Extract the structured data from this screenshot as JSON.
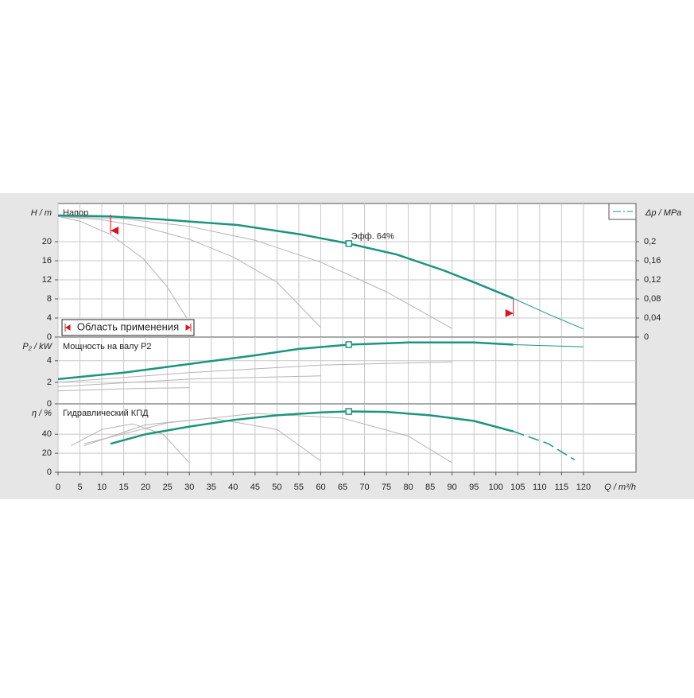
{
  "chart_data": [
    {
      "type": "line",
      "title": "Напор",
      "ylabel": "H / m",
      "y2label": "Δp / MPa",
      "xlim": [
        0,
        132
      ],
      "ylim": [
        0,
        28
      ],
      "yticks": [
        0,
        4,
        8,
        12,
        16,
        20
      ],
      "y2lim": [
        0,
        0.28
      ],
      "y2ticks": [
        0,
        {
          "value": 0.04,
          "label": "0,04"
        },
        {
          "value": 0.08,
          "label": "0,08"
        },
        {
          "value": 0.12,
          "label": "0,12"
        },
        {
          "value": 0.16,
          "label": "0,16"
        },
        {
          "value": 0.2,
          "label": "0,2"
        }
      ],
      "grid": true,
      "series": [
        {
          "color": "#b4b4b4",
          "style": "thin",
          "x": [
            0,
            5,
            12,
            19.4,
            24.8,
            29.4
          ],
          "values": [
            25.3,
            24.3,
            21.5,
            16.5,
            10.7,
            4
          ]
        },
        {
          "color": "#b4b4b4",
          "style": "thin",
          "x": [
            0,
            10,
            20,
            30,
            40,
            50,
            60
          ],
          "values": [
            25.3,
            24.6,
            23,
            20.5,
            16.8,
            11.5,
            2
          ]
        },
        {
          "color": "#b4b4b4",
          "style": "thin",
          "x": [
            0,
            15,
            30,
            45,
            60,
            75,
            90
          ],
          "values": [
            25.3,
            24.8,
            23.2,
            20.3,
            15.7,
            9.5,
            1.8
          ]
        },
        {
          "color": "#1a9580",
          "style": "thick",
          "x": [
            0,
            12,
            23,
            41,
            55.6,
            66.4,
            77.4,
            88,
            95.5,
            104
          ],
          "values": [
            25.5,
            25.3,
            24.7,
            23.5,
            21.5,
            19.6,
            17.3,
            14,
            11.3,
            8.1
          ]
        },
        {
          "color": "#1a9580",
          "style": "thin",
          "x": [
            104,
            112,
            120
          ],
          "values": [
            8.1,
            4.8,
            1.7
          ]
        }
      ],
      "points": [
        {
          "x": 66.4,
          "y": 19.6
        }
      ],
      "annotation": "Эфф.  64%",
      "range": [
        12,
        104
      ],
      "range_label": "Область применения",
      "range_color": "#e0121b"
    },
    {
      "type": "line",
      "title": "Мощность на валу P2",
      "ylabel": "P₂ / kW",
      "xlim": [
        0,
        132
      ],
      "ylim": [
        0,
        6.2
      ],
      "yticks": [
        0,
        2,
        4
      ],
      "grid": true,
      "series": [
        {
          "color": "#b4b4b4",
          "style": "thin",
          "x": [
            0,
            15,
            30
          ],
          "values": [
            1.2,
            1.4,
            1.5
          ]
        },
        {
          "color": "#b4b4b4",
          "style": "thin",
          "x": [
            0,
            30,
            60
          ],
          "values": [
            1.6,
            2.3,
            2.6
          ]
        },
        {
          "color": "#b4b4b4",
          "style": "thin",
          "x": [
            0,
            30,
            60,
            90
          ],
          "values": [
            2.0,
            2.9,
            3.6,
            3.9
          ]
        },
        {
          "color": "#1a9580",
          "style": "thick",
          "x": [
            0,
            15,
            30,
            45,
            55,
            66.4,
            80,
            95,
            104
          ],
          "values": [
            2.3,
            2.9,
            3.7,
            4.5,
            5.1,
            5.5,
            5.7,
            5.7,
            5.5
          ]
        },
        {
          "color": "#1a9580",
          "style": "thin",
          "x": [
            104,
            112,
            120
          ],
          "values": [
            5.5,
            5.4,
            5.3
          ]
        }
      ],
      "points": [
        {
          "x": 66.4,
          "y": 5.5
        }
      ]
    },
    {
      "type": "line",
      "title": "Гидравлический КПД",
      "ylabel": "η / %",
      "xlabel": "Q / m³/h",
      "xlim": [
        0,
        132
      ],
      "ylim": [
        0,
        72
      ],
      "yticks": [
        0,
        20,
        40
      ],
      "xticks": [
        0,
        5,
        10,
        15,
        20,
        25,
        30,
        35,
        40,
        45,
        50,
        55,
        60,
        65,
        70,
        75,
        80,
        85,
        90,
        95,
        100,
        105,
        110,
        115,
        120
      ],
      "grid": true,
      "series": [
        {
          "color": "#b4b4b4",
          "style": "thin",
          "x": [
            3,
            10,
            17,
            24,
            30
          ],
          "values": [
            28,
            45,
            51,
            40,
            10
          ]
        },
        {
          "color": "#b4b4b4",
          "style": "thin",
          "x": [
            6,
            20,
            35,
            50,
            60
          ],
          "values": [
            28,
            50,
            57,
            45,
            12
          ]
        },
        {
          "color": "#b4b4b4",
          "style": "thin",
          "x": [
            6,
            25,
            45,
            65,
            80,
            90
          ],
          "values": [
            30,
            52,
            62,
            57,
            38,
            10
          ]
        },
        {
          "color": "#1a9580",
          "style": "thick",
          "x": [
            12,
            20,
            30,
            40,
            50,
            60,
            66.4,
            75,
            85,
            95,
            104
          ],
          "values": [
            30,
            40,
            48,
            55,
            60,
            63,
            64,
            63.5,
            60,
            54,
            43
          ]
        },
        {
          "color": "#1a9580",
          "style": "dashed",
          "x": [
            104,
            112,
            118
          ],
          "values": [
            43,
            30,
            13
          ]
        }
      ],
      "points": [
        {
          "x": 66.4,
          "y": 64
        }
      ]
    }
  ]
}
